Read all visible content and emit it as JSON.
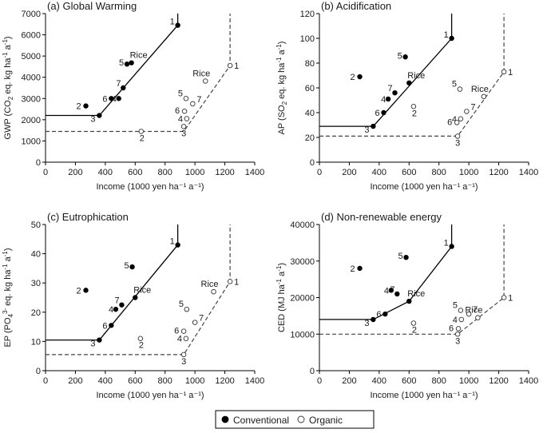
{
  "legend": {
    "conventional": "Conventional",
    "organic": "Organic"
  },
  "chart_data": [
    {
      "type": "scatter",
      "title": "(a) Global Warming",
      "xlabel": "Income (1000 yen ha⁻¹ a⁻¹)",
      "ylabel_parts": [
        "GWP (CO",
        "2",
        " eq. kg ha",
        "-1",
        " a",
        "-1",
        ")"
      ],
      "xlim": [
        0,
        1400
      ],
      "ylim": [
        0,
        7000
      ],
      "xticks": [
        0,
        200,
        400,
        600,
        800,
        1000,
        1200,
        1400
      ],
      "yticks": [
        0,
        1000,
        2000,
        3000,
        4000,
        5000,
        6000,
        7000
      ],
      "series": [
        {
          "name": "Conventional",
          "points": [
            {
              "label": "1",
              "x": 885,
              "y": 6450
            },
            {
              "label": "2",
              "x": 270,
              "y": 2650
            },
            {
              "label": "3",
              "x": 360,
              "y": 2200
            },
            {
              "label": "4",
              "x": 490,
              "y": 3000
            },
            {
              "label": "5",
              "x": 545,
              "y": 4620
            },
            {
              "label": "6",
              "x": 440,
              "y": 3000
            },
            {
              "label": "7",
              "x": 520,
              "y": 3500
            },
            {
              "label": "Rice",
              "x": 575,
              "y": 4680
            }
          ]
        },
        {
          "name": "Organic",
          "points": [
            {
              "label": "1",
              "x": 1235,
              "y": 4550
            },
            {
              "label": "2",
              "x": 640,
              "y": 1450
            },
            {
              "label": "3",
              "x": 925,
              "y": 1680
            },
            {
              "label": "4",
              "x": 945,
              "y": 2050
            },
            {
              "label": "5",
              "x": 940,
              "y": 3000
            },
            {
              "label": "6",
              "x": 930,
              "y": 2400
            },
            {
              "label": "7",
              "x": 985,
              "y": 2750
            },
            {
              "label": "Rice",
              "x": 1070,
              "y": 3820
            }
          ]
        }
      ],
      "frontier_conventional": [
        [
          0,
          2200
        ],
        [
          360,
          2200
        ],
        [
          885,
          6450
        ],
        [
          885,
          7000
        ]
      ],
      "frontier_organic": [
        [
          0,
          1450
        ],
        [
          925,
          1450
        ],
        [
          1235,
          4550
        ],
        [
          1235,
          7000
        ]
      ]
    },
    {
      "type": "scatter",
      "title": "(b) Acidification",
      "xlabel": "Income (1000 yen ha⁻¹ a⁻¹)",
      "ylabel_parts": [
        "AP (SO",
        "2",
        " eq. kg ha",
        "-1",
        " a",
        "-1",
        ")"
      ],
      "xlim": [
        0,
        1400
      ],
      "ylim": [
        0,
        120
      ],
      "xticks": [
        0,
        200,
        400,
        600,
        800,
        1000,
        1200,
        1400
      ],
      "yticks": [
        0,
        20,
        40,
        60,
        80,
        100,
        120
      ],
      "series": [
        {
          "name": "Conventional",
          "points": [
            {
              "label": "1",
              "x": 885,
              "y": 100
            },
            {
              "label": "2",
              "x": 270,
              "y": 69
            },
            {
              "label": "3",
              "x": 360,
              "y": 29
            },
            {
              "label": "4",
              "x": 460,
              "y": 51
            },
            {
              "label": "5",
              "x": 575,
              "y": 85
            },
            {
              "label": "6",
              "x": 430,
              "y": 40
            },
            {
              "label": "7",
              "x": 505,
              "y": 56
            },
            {
              "label": "Rice",
              "x": 600,
              "y": 64
            }
          ]
        },
        {
          "name": "Organic",
          "points": [
            {
              "label": "1",
              "x": 1235,
              "y": 73
            },
            {
              "label": "2",
              "x": 630,
              "y": 45
            },
            {
              "label": "3",
              "x": 925,
              "y": 21
            },
            {
              "label": "4",
              "x": 945,
              "y": 35
            },
            {
              "label": "5",
              "x": 940,
              "y": 59
            },
            {
              "label": "6",
              "x": 920,
              "y": 32
            },
            {
              "label": "7",
              "x": 985,
              "y": 41
            },
            {
              "label": "Rice",
              "x": 1100,
              "y": 53
            }
          ]
        }
      ],
      "frontier_conventional": [
        [
          0,
          29
        ],
        [
          360,
          29
        ],
        [
          885,
          100
        ],
        [
          885,
          120
        ]
      ],
      "frontier_organic": [
        [
          0,
          21
        ],
        [
          925,
          21
        ],
        [
          1235,
          73
        ],
        [
          1235,
          120
        ]
      ]
    },
    {
      "type": "scatter",
      "title": "(c) Eutrophication",
      "xlabel": "Income (1000 yen ha⁻¹ a⁻¹)",
      "ylabel_parts": [
        "EP (PO",
        "4",
        "3-",
        " eq. kg ha",
        "-1",
        " a",
        "-1",
        ")"
      ],
      "xlim": [
        0,
        1400
      ],
      "ylim": [
        0,
        50
      ],
      "xticks": [
        0,
        200,
        400,
        600,
        800,
        1000,
        1200,
        1400
      ],
      "yticks": [
        0,
        10,
        20,
        30,
        40,
        50
      ],
      "series": [
        {
          "name": "Conventional",
          "points": [
            {
              "label": "1",
              "x": 885,
              "y": 43
            },
            {
              "label": "2",
              "x": 270,
              "y": 27.5
            },
            {
              "label": "3",
              "x": 360,
              "y": 10.5
            },
            {
              "label": "4",
              "x": 470,
              "y": 21
            },
            {
              "label": "5",
              "x": 580,
              "y": 35.5
            },
            {
              "label": "6",
              "x": 440,
              "y": 15.5
            },
            {
              "label": "7",
              "x": 510,
              "y": 22.5
            },
            {
              "label": "Rice",
              "x": 600,
              "y": 25
            }
          ]
        },
        {
          "name": "Organic",
          "points": [
            {
              "label": "1",
              "x": 1235,
              "y": 30.5
            },
            {
              "label": "2",
              "x": 635,
              "y": 11
            },
            {
              "label": "3",
              "x": 925,
              "y": 5.5
            },
            {
              "label": "4",
              "x": 940,
              "y": 11
            },
            {
              "label": "5",
              "x": 945,
              "y": 21
            },
            {
              "label": "6",
              "x": 925,
              "y": 13.5
            },
            {
              "label": "7",
              "x": 1000,
              "y": 16.5
            },
            {
              "label": "Rice",
              "x": 1125,
              "y": 27
            }
          ]
        }
      ],
      "frontier_conventional": [
        [
          0,
          10.5
        ],
        [
          360,
          10.5
        ],
        [
          885,
          43
        ],
        [
          885,
          50
        ]
      ],
      "frontier_organic": [
        [
          0,
          5.5
        ],
        [
          925,
          5.5
        ],
        [
          1235,
          30.5
        ],
        [
          1235,
          50
        ]
      ]
    },
    {
      "type": "scatter",
      "title": "(d) Non-renewable energy",
      "xlabel": "Income (1000 yen ha⁻¹ a⁻¹)",
      "ylabel_parts": [
        "CED (MJ ha",
        "-1",
        " a",
        "-1",
        ")"
      ],
      "xlim": [
        0,
        1400
      ],
      "ylim": [
        0,
        40000
      ],
      "xticks": [
        0,
        200,
        400,
        600,
        800,
        1000,
        1200,
        1400
      ],
      "yticks": [
        0,
        10000,
        20000,
        30000,
        40000
      ],
      "series": [
        {
          "name": "Conventional",
          "points": [
            {
              "label": "1",
              "x": 885,
              "y": 34000
            },
            {
              "label": "2",
              "x": 270,
              "y": 28000
            },
            {
              "label": "3",
              "x": 360,
              "y": 14000
            },
            {
              "label": "4",
              "x": 480,
              "y": 22000
            },
            {
              "label": "5",
              "x": 580,
              "y": 31000
            },
            {
              "label": "6",
              "x": 440,
              "y": 15500
            },
            {
              "label": "7",
              "x": 520,
              "y": 21000
            },
            {
              "label": "Rice",
              "x": 600,
              "y": 19000
            }
          ]
        },
        {
          "name": "Organic",
          "points": [
            {
              "label": "1",
              "x": 1235,
              "y": 20000
            },
            {
              "label": "2",
              "x": 630,
              "y": 13000
            },
            {
              "label": "3",
              "x": 925,
              "y": 10000
            },
            {
              "label": "4",
              "x": 950,
              "y": 14000
            },
            {
              "label": "5",
              "x": 945,
              "y": 16500
            },
            {
              "label": "6",
              "x": 930,
              "y": 11500
            },
            {
              "label": "7",
              "x": 1000,
              "y": 15500
            },
            {
              "label": "Rice",
              "x": 1060,
              "y": 14500
            }
          ]
        }
      ],
      "frontier_conventional": [
        [
          0,
          14000
        ],
        [
          360,
          14000
        ],
        [
          600,
          19000
        ],
        [
          885,
          34000
        ],
        [
          885,
          40000
        ]
      ],
      "frontier_organic": [
        [
          0,
          10000
        ],
        [
          925,
          10000
        ],
        [
          1235,
          20000
        ],
        [
          1235,
          40000
        ]
      ]
    }
  ]
}
